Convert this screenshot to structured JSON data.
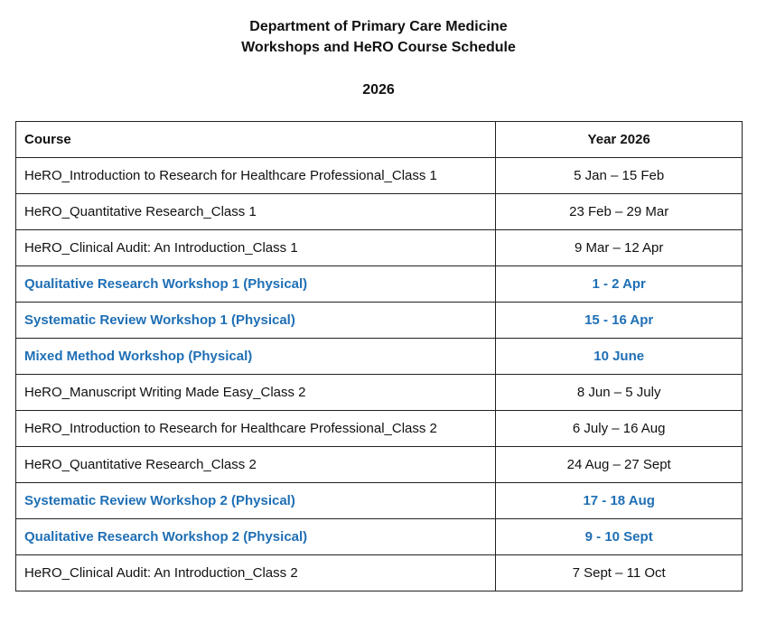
{
  "header": {
    "line1": "Department of Primary Care Medicine",
    "line2": "Workshops and HeRO Course Schedule",
    "year": "2026"
  },
  "table": {
    "columns": [
      "Course",
      "Year 2026"
    ],
    "rows": [
      {
        "course": "HeRO_Introduction to Research for Healthcare Professional_Class 1",
        "dates": "5 Jan – 15 Feb",
        "workshop": false
      },
      {
        "course": "HeRO_Quantitative Research_Class 1",
        "dates": "23 Feb – 29 Mar",
        "workshop": false
      },
      {
        "course": "HeRO_Clinical Audit: An Introduction_Class 1",
        "dates": "9 Mar – 12 Apr",
        "workshop": false
      },
      {
        "course": "Qualitative Research Workshop 1 (Physical)",
        "dates": "1 - 2 Apr",
        "workshop": true
      },
      {
        "course": "Systematic Review Workshop 1 (Physical)",
        "dates": "15 - 16 Apr",
        "workshop": true
      },
      {
        "course": "Mixed Method Workshop (Physical)",
        "dates": "10 June",
        "workshop": true
      },
      {
        "course": "HeRO_Manuscript Writing Made Easy_Class 2",
        "dates": "8 Jun – 5 July",
        "workshop": false
      },
      {
        "course": "HeRO_Introduction to Research for Healthcare Professional_Class 2",
        "dates": "6 July – 16 Aug",
        "workshop": false
      },
      {
        "course": "HeRO_Quantitative Research_Class 2",
        "dates": "24 Aug – 27 Sept",
        "workshop": false
      },
      {
        "course": "Systematic Review Workshop 2 (Physical)",
        "dates": "17 - 18 Aug",
        "workshop": true
      },
      {
        "course": "Qualitative Research Workshop 2 (Physical)",
        "dates": "9 - 10 Sept",
        "workshop": true
      },
      {
        "course": "HeRO_Clinical Audit: An Introduction_Class 2",
        "dates": "7 Sept – 11 Oct",
        "workshop": false
      }
    ]
  },
  "colors": {
    "workshop_text": "#1f6fb5",
    "regular_text": "#111111",
    "border": "#222222"
  }
}
